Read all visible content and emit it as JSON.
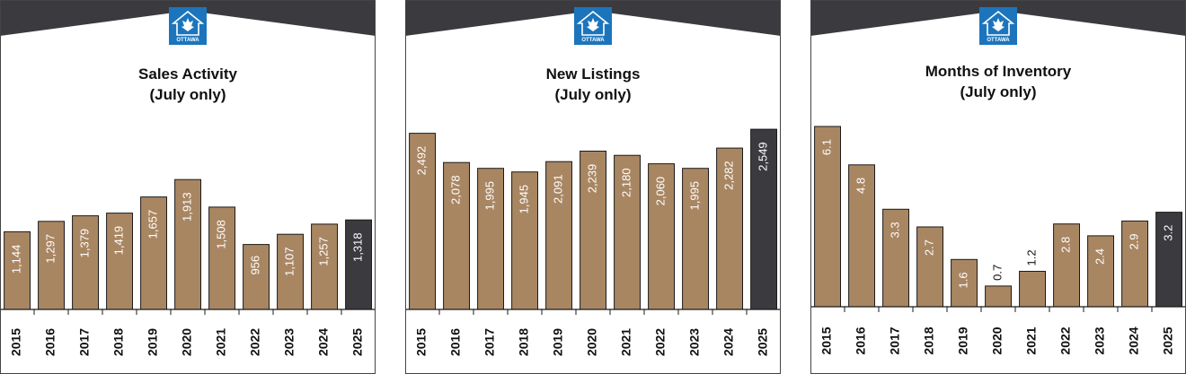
{
  "colors": {
    "bar": "#a98662",
    "bar_current": "#3b3b3f",
    "header": "#3b3b3f",
    "logo": "#1c75bc",
    "text": "#111111",
    "bar_label": "#ffffff"
  },
  "logo": {
    "icon": "ottawa-real-estate-board-logo",
    "text": "OTTAWA"
  },
  "chart_data": [
    {
      "type": "bar",
      "title": "Sales Activity",
      "subtitle": "(July only)",
      "categories": [
        "2015",
        "2016",
        "2017",
        "2018",
        "2019",
        "2020",
        "2021",
        "2022",
        "2023",
        "2024",
        "2025"
      ],
      "values": [
        1144,
        1297,
        1379,
        1419,
        1657,
        1913,
        1508,
        956,
        1107,
        1257,
        1318
      ],
      "labels": [
        "1,144",
        "1,297",
        "1,379",
        "1,419",
        "1,657",
        "1,913",
        "1,508",
        "956",
        "1,107",
        "1,257",
        "1,318"
      ],
      "highlight_index": 10,
      "ylim": [
        0,
        2550
      ],
      "grid": false,
      "legend": "none"
    },
    {
      "type": "bar",
      "title": "New Listings",
      "subtitle": "(July only)",
      "categories": [
        "2015",
        "2016",
        "2017",
        "2018",
        "2019",
        "2020",
        "2021",
        "2022",
        "2023",
        "2024",
        "2025"
      ],
      "values": [
        2492,
        2078,
        1995,
        1945,
        2091,
        2239,
        2180,
        2060,
        1995,
        2282,
        2549
      ],
      "labels": [
        "2,492",
        "2,078",
        "1,995",
        "1,945",
        "2,091",
        "2,239",
        "2,180",
        "2,060",
        "1,995",
        "2,282",
        "2,549"
      ],
      "highlight_index": 10,
      "ylim": [
        0,
        2550
      ],
      "grid": false,
      "legend": "none"
    },
    {
      "type": "bar",
      "title": "Months of Inventory",
      "subtitle": "(July only)",
      "categories": [
        "2015",
        "2016",
        "2017",
        "2018",
        "2019",
        "2020",
        "2021",
        "2022",
        "2023",
        "2024",
        "2025"
      ],
      "values": [
        6.1,
        4.8,
        3.3,
        2.7,
        1.6,
        0.7,
        1.2,
        2.8,
        2.4,
        2.9,
        3.2
      ],
      "labels": [
        "6.1",
        "4.8",
        "3.3",
        "2.7",
        "1.6",
        "0.7",
        "1.2",
        "2.8",
        "2.4",
        "2.9",
        "3.2"
      ],
      "highlight_index": 10,
      "ylim": [
        0,
        6.1
      ],
      "grid": false,
      "legend": "none"
    }
  ]
}
